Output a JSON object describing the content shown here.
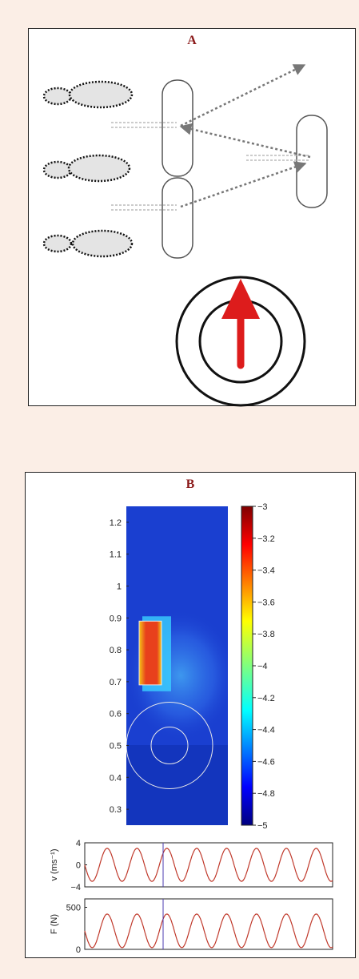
{
  "panel_a": {
    "label": "A"
  },
  "panel_b": {
    "label": "B"
  },
  "chart_data": [
    {
      "type": "heatmap",
      "panel": "B",
      "title": "",
      "xlabel": "",
      "ylabel": "",
      "ylim": [
        0.25,
        1.25
      ],
      "y_ticks": [
        "0.3",
        "0.4",
        "0.5",
        "0.6",
        "0.7",
        "0.8",
        "0.9",
        "1",
        "1.1",
        "1.2"
      ],
      "colorbar": {
        "range": [
          -5,
          -3
        ],
        "ticks": [
          "-3",
          "-3.2",
          "-3.4",
          "-3.6",
          "-3.8",
          "-4",
          "-4.2",
          "-4.4",
          "-4.6",
          "-4.8",
          "-5"
        ],
        "colormap": "jet"
      },
      "colors": {
        "background_field": "#1a3fd0",
        "hot_spot": "#e8401c",
        "overlay": "#e8e8e8"
      },
      "hot_region_y": [
        0.69,
        0.89
      ],
      "circle_centre_y": 0.5
    },
    {
      "type": "line",
      "panel": "B",
      "ylabel": "v (ms⁻¹)",
      "ylim": [
        -4,
        4
      ],
      "y_ticks": [
        "4",
        "0",
        "-4"
      ],
      "series": [
        {
          "amplitude": 3,
          "cycles": 8.3,
          "color": "#c0392b"
        }
      ],
      "marker_color": "#4b3bb0"
    },
    {
      "type": "line",
      "panel": "B",
      "ylabel": "F (N)",
      "ylim": [
        0,
        600
      ],
      "y_ticks": [
        "500",
        "0"
      ],
      "series": [
        {
          "amplitude": 200,
          "offset": 220,
          "cycles": 8.3,
          "color": "#c0392b"
        }
      ],
      "marker_color": "#4b3bb0"
    }
  ]
}
